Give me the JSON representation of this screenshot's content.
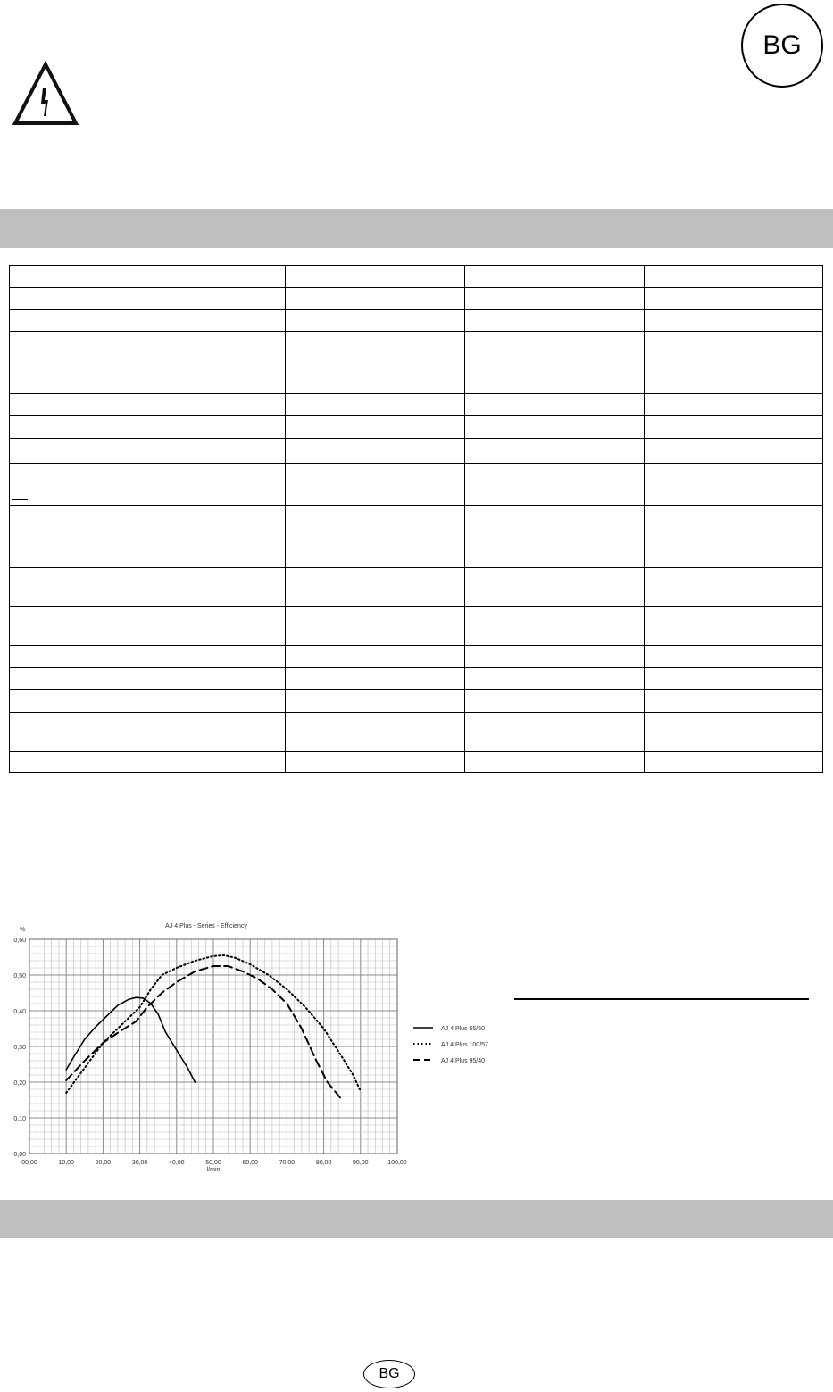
{
  "header": {
    "badge": "BG",
    "warning_icon": "electric-hazard-triangle-icon"
  },
  "footer": {
    "badge": "BG"
  },
  "table": {
    "columns": 4,
    "rows": 18
  },
  "chart_data": {
    "type": "line",
    "title": "AJ 4 Plus - Series - Efficiency",
    "xlabel": "l/min",
    "ylabel": "%",
    "xlim": [
      0,
      100
    ],
    "ylim": [
      0,
      0.6
    ],
    "x_ticks": [
      "00,00",
      "10,00",
      "20,00",
      "30,00",
      "40,00",
      "50,00",
      "60,00",
      "70,00",
      "80,00",
      "90,00",
      "100,00"
    ],
    "y_ticks": [
      "0,00",
      "0,10",
      "0,20",
      "0,30",
      "0,40",
      "0,50",
      "0,60"
    ],
    "grid": true,
    "legend_placement": "right",
    "series": [
      {
        "name": "AJ 4 Plus 55/50",
        "style": "solid",
        "points": [
          [
            10,
            0.235
          ],
          [
            12,
            0.27
          ],
          [
            15,
            0.32
          ],
          [
            18,
            0.355
          ],
          [
            21,
            0.385
          ],
          [
            24,
            0.415
          ],
          [
            27,
            0.432
          ],
          [
            29,
            0.437
          ],
          [
            31,
            0.435
          ],
          [
            33,
            0.42
          ],
          [
            35,
            0.39
          ],
          [
            37,
            0.34
          ],
          [
            40,
            0.29
          ],
          [
            43,
            0.24
          ],
          [
            45,
            0.2
          ]
        ]
      },
      {
        "name": "AJ 4 Plus 100/57",
        "style": "dotted",
        "points": [
          [
            10,
            0.17
          ],
          [
            15,
            0.24
          ],
          [
            20,
            0.31
          ],
          [
            25,
            0.36
          ],
          [
            30,
            0.41
          ],
          [
            33,
            0.46
          ],
          [
            36,
            0.5
          ],
          [
            40,
            0.52
          ],
          [
            45,
            0.54
          ],
          [
            50,
            0.553
          ],
          [
            53,
            0.555
          ],
          [
            56,
            0.548
          ],
          [
            60,
            0.53
          ],
          [
            65,
            0.5
          ],
          [
            70,
            0.46
          ],
          [
            75,
            0.41
          ],
          [
            80,
            0.35
          ],
          [
            85,
            0.27
          ],
          [
            88,
            0.22
          ],
          [
            90,
            0.175
          ]
        ]
      },
      {
        "name": "AJ 4 Plus 95/40",
        "style": "dashed",
        "points": [
          [
            10,
            0.205
          ],
          [
            15,
            0.26
          ],
          [
            20,
            0.31
          ],
          [
            25,
            0.345
          ],
          [
            29,
            0.37
          ],
          [
            32,
            0.41
          ],
          [
            36,
            0.45
          ],
          [
            40,
            0.48
          ],
          [
            45,
            0.51
          ],
          [
            50,
            0.525
          ],
          [
            54,
            0.525
          ],
          [
            58,
            0.51
          ],
          [
            62,
            0.49
          ],
          [
            66,
            0.46
          ],
          [
            70,
            0.42
          ],
          [
            74,
            0.35
          ],
          [
            78,
            0.26
          ],
          [
            81,
            0.2
          ],
          [
            85,
            0.15
          ]
        ]
      }
    ]
  }
}
